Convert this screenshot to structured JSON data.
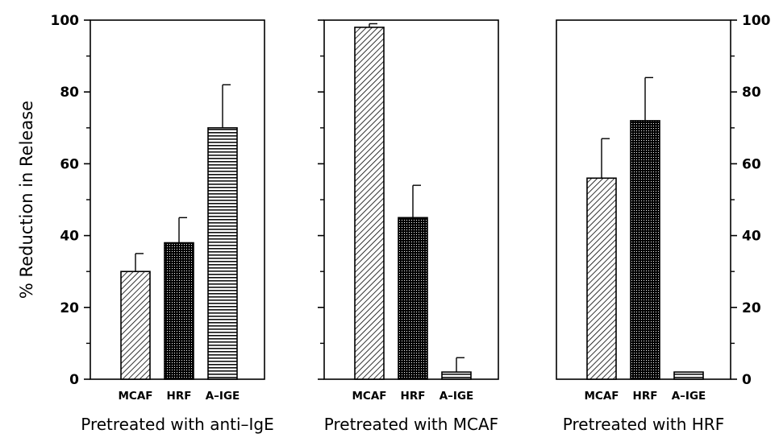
{
  "figure": {
    "ylabel": "% Reduction in Release"
  },
  "chart_data": [
    {
      "type": "bar",
      "title": "Pretreated with anti–IgE",
      "categories": [
        "MCAF",
        "HRF",
        "A–IGE"
      ],
      "values": [
        30,
        38,
        70
      ],
      "errors": [
        5,
        7,
        12
      ],
      "patterns": [
        "diagonal",
        "dots",
        "horizontal"
      ],
      "ylim": [
        0,
        100
      ],
      "yticks": [
        0,
        20,
        40,
        60,
        80,
        100
      ],
      "ytick_labels": [
        "0",
        "20",
        "40",
        "60",
        "80",
        "100"
      ],
      "ylabel": "% Reduction in Release",
      "tick_side": "left",
      "show_tick_labels": true
    },
    {
      "type": "bar",
      "title": "Pretreated with MCAF",
      "categories": [
        "MCAF",
        "HRF",
        "A–IGE"
      ],
      "values": [
        98,
        45,
        2
      ],
      "errors": [
        1,
        9,
        4
      ],
      "patterns": [
        "diagonal",
        "dots",
        "horizontal"
      ],
      "ylim": [
        0,
        100
      ],
      "yticks": [
        0,
        20,
        40,
        60,
        80,
        100
      ],
      "ytick_labels": [],
      "tick_side": "left",
      "show_tick_labels": false
    },
    {
      "type": "bar",
      "title": "Pretreated with HRF",
      "categories": [
        "MCAF",
        "HRF",
        "A–IGE"
      ],
      "values": [
        56,
        72,
        2
      ],
      "errors": [
        11,
        12,
        0
      ],
      "patterns": [
        "diagonal",
        "dots",
        "horizontal"
      ],
      "ylim": [
        0,
        100
      ],
      "yticks": [
        0,
        20,
        40,
        60,
        80,
        100
      ],
      "ytick_labels": [
        "0",
        "20",
        "40",
        "60",
        "80",
        "100"
      ],
      "tick_side": "right",
      "show_tick_labels": true
    }
  ]
}
